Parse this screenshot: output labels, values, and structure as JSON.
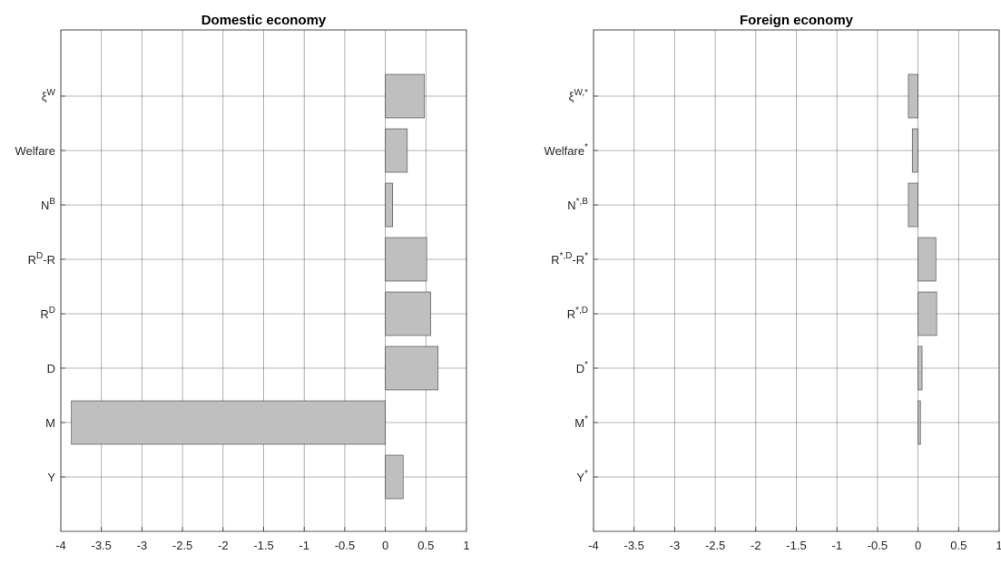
{
  "chart_data": [
    {
      "type": "bar",
      "orientation": "horizontal",
      "title": "Domestic economy",
      "xlabel": "",
      "ylabel": "",
      "xlim": [
        -4,
        1
      ],
      "xticks": [
        -4,
        -3.5,
        -3,
        -2.5,
        -2,
        -1.5,
        -1,
        -0.5,
        0,
        0.5,
        1
      ],
      "grid": true,
      "bar_color": "#bfbfbf",
      "categories": [
        {
          "base": "Y",
          "sup": ""
        },
        {
          "base": "M",
          "sup": ""
        },
        {
          "base": "D",
          "sup": ""
        },
        {
          "base": "R",
          "sup": "D"
        },
        {
          "base": "R",
          "sup": "D",
          "tail": "-R",
          "tail_sup": ""
        },
        {
          "base": "N",
          "sup": "B"
        },
        {
          "base": "Welfare",
          "sup": ""
        },
        {
          "base": "ξ",
          "sup": "W"
        }
      ],
      "values": [
        0.22,
        -3.87,
        0.65,
        0.56,
        0.51,
        0.09,
        0.27,
        0.48
      ]
    },
    {
      "type": "bar",
      "orientation": "horizontal",
      "title": "Foreign economy",
      "xlabel": "",
      "ylabel": "",
      "xlim": [
        -4,
        1
      ],
      "xticks": [
        -4,
        -3.5,
        -3,
        -2.5,
        -2,
        -1.5,
        -1,
        -0.5,
        0,
        0.5,
        1
      ],
      "grid": true,
      "bar_color": "#bfbfbf",
      "categories": [
        {
          "base": "Y",
          "sup": "*"
        },
        {
          "base": "M",
          "sup": "*"
        },
        {
          "base": "D",
          "sup": "*"
        },
        {
          "base": "R",
          "sup": "*,D"
        },
        {
          "base": "R",
          "sup": "*,D",
          "tail": "-R",
          "tail_sup": "*"
        },
        {
          "base": "N",
          "sup": "*,B"
        },
        {
          "base": "Welfare",
          "sup": "*"
        },
        {
          "base": "ξ",
          "sup": "W,*"
        }
      ],
      "values": [
        0.0,
        0.03,
        0.05,
        0.23,
        0.22,
        -0.12,
        -0.07,
        -0.12
      ]
    }
  ]
}
